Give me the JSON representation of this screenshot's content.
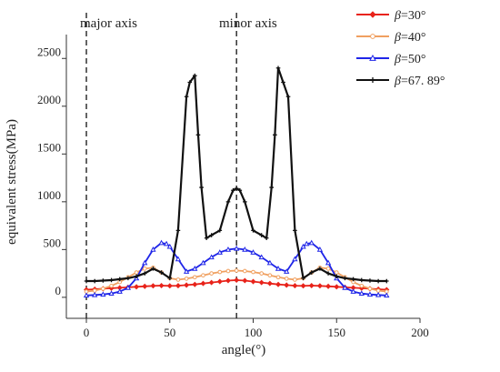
{
  "chart_data": {
    "type": "line",
    "xlabel": "angle(°)",
    "ylabel": "equivalent stress(MPa)",
    "xlim": [
      -12,
      200
    ],
    "ylim": [
      -220,
      2750
    ],
    "x_ticks": [
      0,
      50,
      100,
      150,
      200
    ],
    "x_tick_labels": [
      "0",
      "50",
      "100",
      "150",
      "200"
    ],
    "y_ticks": [
      0,
      500,
      1000,
      1500,
      2000,
      2500
    ],
    "y_tick_labels": [
      "0",
      "500",
      "1000",
      "1500",
      "2000",
      "2500"
    ],
    "grid": false,
    "legend": "top-right",
    "annotations": [
      {
        "text": "major axis",
        "x": 0
      },
      {
        "text": "minor axis",
        "x": 90
      }
    ],
    "series": [
      {
        "name": "β=30°",
        "legend_prefix": "β",
        "legend_suffix": "=30°",
        "color": "#e8231a",
        "marker": "diamond",
        "x": [
          0,
          5,
          10,
          15,
          20,
          25,
          30,
          35,
          40,
          45,
          50,
          55,
          60,
          65,
          70,
          75,
          80,
          85,
          90,
          95,
          100,
          105,
          110,
          115,
          120,
          125,
          130,
          135,
          140,
          145,
          150,
          155,
          160,
          165,
          170,
          175,
          180
        ],
        "y": [
          80,
          85,
          90,
          95,
          100,
          105,
          110,
          115,
          120,
          123,
          120,
          122,
          128,
          135,
          145,
          155,
          165,
          175,
          180,
          175,
          165,
          155,
          145,
          135,
          128,
          122,
          120,
          123,
          120,
          115,
          110,
          105,
          100,
          95,
          90,
          85,
          80
        ]
      },
      {
        "name": "β=40°",
        "legend_prefix": "β",
        "legend_suffix": "=40°",
        "color": "#f0a060",
        "marker": "circle",
        "x": [
          0,
          5,
          10,
          15,
          20,
          25,
          30,
          35,
          40,
          45,
          50,
          55,
          60,
          65,
          70,
          75,
          80,
          85,
          90,
          95,
          100,
          105,
          110,
          115,
          120,
          125,
          130,
          135,
          140,
          145,
          150,
          155,
          160,
          165,
          170,
          175,
          180
        ],
        "y": [
          60,
          70,
          90,
          120,
          160,
          210,
          260,
          300,
          310,
          260,
          200,
          185,
          195,
          210,
          230,
          250,
          265,
          275,
          280,
          275,
          265,
          250,
          230,
          210,
          195,
          185,
          200,
          260,
          310,
          300,
          260,
          210,
          160,
          120,
          90,
          70,
          60
        ]
      },
      {
        "name": "β=50°",
        "legend_prefix": "β",
        "legend_suffix": "=50°",
        "color": "#1f25e8",
        "marker": "triangle",
        "x": [
          0,
          5,
          10,
          15,
          20,
          25,
          30,
          35,
          40,
          45,
          48,
          50,
          55,
          60,
          65,
          70,
          75,
          80,
          85,
          90,
          95,
          100,
          105,
          110,
          115,
          120,
          125,
          130,
          132,
          135,
          140,
          145,
          150,
          155,
          160,
          165,
          170,
          175,
          180
        ],
        "y": [
          20,
          25,
          30,
          40,
          60,
          100,
          200,
          360,
          500,
          570,
          560,
          530,
          400,
          270,
          300,
          360,
          420,
          470,
          500,
          510,
          500,
          470,
          420,
          360,
          300,
          270,
          400,
          530,
          560,
          570,
          500,
          360,
          200,
          100,
          60,
          40,
          30,
          25,
          20
        ]
      },
      {
        "name": "β=67. 89°",
        "legend_prefix": "β",
        "legend_suffix": "=67. 89°",
        "color": "#111111",
        "marker": "plus",
        "x": [
          0,
          5,
          10,
          15,
          20,
          25,
          30,
          35,
          40,
          45,
          50,
          55,
          60,
          62,
          65,
          67,
          69,
          72,
          75,
          80,
          85,
          88,
          90,
          92,
          95,
          100,
          105,
          108,
          111,
          113,
          115,
          118,
          121,
          125,
          130,
          135,
          140,
          145,
          150,
          155,
          160,
          165,
          170,
          175,
          180
        ],
        "y": [
          170,
          170,
          175,
          180,
          190,
          200,
          220,
          250,
          300,
          260,
          200,
          700,
          2100,
          2250,
          2320,
          1700,
          1150,
          620,
          650,
          700,
          1000,
          1120,
          1140,
          1120,
          1000,
          700,
          650,
          620,
          1150,
          1700,
          2400,
          2250,
          2100,
          700,
          200,
          260,
          300,
          250,
          220,
          200,
          190,
          180,
          175,
          170,
          170
        ]
      }
    ]
  }
}
